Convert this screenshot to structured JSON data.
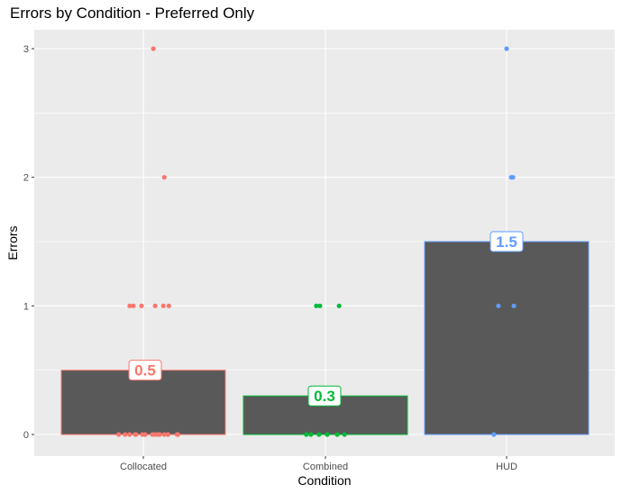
{
  "chart_data": {
    "type": "bar",
    "title": "Errors by Condition - Preferred Only",
    "xlabel": "Condition",
    "ylabel": "Errors",
    "categories": [
      "Collocated",
      "Combined",
      "HUD"
    ],
    "values": [
      0.5,
      0.3,
      1.5
    ],
    "value_labels": [
      "0.5",
      "0.3",
      "1.5"
    ],
    "colors": [
      "#F8766D",
      "#00BA38",
      "#619CFF"
    ],
    "bar_fill": "#595959",
    "panel_background": "#EBEBEB",
    "grid_color": "#FFFFFF",
    "ylim": [
      -0.2,
      3.15
    ],
    "yticks": [
      0,
      1,
      2,
      3
    ],
    "ytick_labels": [
      "0",
      "1",
      "2",
      "3"
    ],
    "grid": true,
    "legend": "none",
    "points": [
      {
        "category": "Collocated",
        "jitter": [
          -0.27,
          -0.2,
          -0.15,
          -0.09,
          -0.08,
          -0.01,
          0.02,
          0.1,
          0.13,
          0.16,
          0.18,
          0.23,
          0.27,
          0.27,
          0.37,
          0.38,
          -0.15,
          -0.11,
          -0.02,
          0.13,
          0.22,
          0.28,
          0.23,
          0.11
        ],
        "values": [
          0,
          0,
          0,
          0,
          0,
          0,
          0,
          0,
          0,
          0,
          0,
          0,
          0,
          0,
          0,
          0,
          1,
          1,
          1,
          1,
          1,
          1,
          2,
          3
        ]
      },
      {
        "category": "Combined",
        "jitter": [
          -0.21,
          -0.16,
          -0.07,
          0.02,
          0.13,
          0.21,
          -0.1,
          -0.06,
          0.15
        ],
        "values": [
          0,
          0,
          0,
          0,
          0,
          0,
          1,
          1,
          1
        ]
      },
      {
        "category": "HUD",
        "jitter": [
          -0.14,
          -0.09,
          0.08,
          0.0,
          0.05,
          0.07
        ],
        "values": [
          0,
          1,
          1,
          3,
          2,
          2
        ]
      }
    ]
  }
}
